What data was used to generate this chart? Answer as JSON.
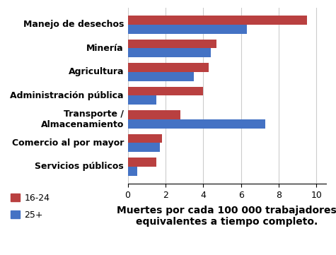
{
  "categories": [
    "Servicios públicos",
    "Comercio al por mayor",
    "Transporte /\nAlmacenamiento",
    "Administración pública",
    "Agricultura",
    "Minería",
    "Manejo de desechos"
  ],
  "values_1624": [
    1.5,
    1.8,
    2.8,
    4.0,
    4.3,
    4.7,
    9.5
  ],
  "values_25plus": [
    0.5,
    1.7,
    7.3,
    1.5,
    3.5,
    4.4,
    6.3
  ],
  "color_1624": "#b94040",
  "color_25plus": "#4472c4",
  "xlabel": "Muertes por cada 100 000 trabajadores\nequivalentes a tiempo completo.",
  "legend_1624": "16-24",
  "legend_25plus": "25+",
  "xlim": [
    0,
    10.5
  ],
  "xticks": [
    0,
    2,
    4,
    6,
    8,
    10
  ],
  "bar_height": 0.38,
  "background_color": "#ffffff",
  "label_fontsize": 9.0,
  "xlabel_fontsize": 10.0
}
